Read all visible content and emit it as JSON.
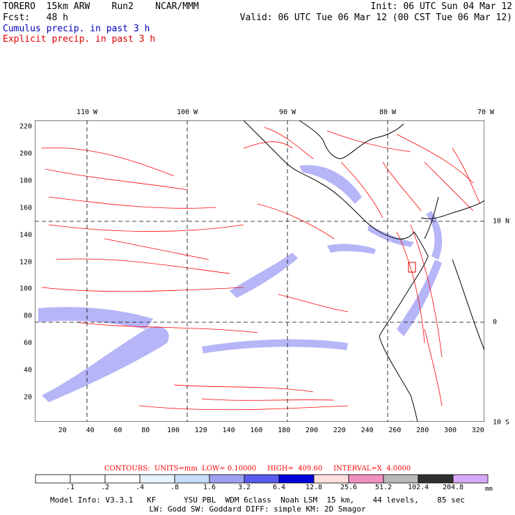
{
  "header": {
    "model": "TORERO  15km ARW    Run2    NCAR/MMM",
    "init": "Init: 06 UTC Sun 04 Mar 12",
    "fcst": "Fcst:   48 h",
    "valid": "Valid: 06 UTC Tue 06 Mar 12 (00 CST Tue 06 Mar 12)",
    "field1": "Cumulus precip. in past 3 h",
    "field2": "Explicit precip. in past 3 h"
  },
  "colors": {
    "cumulus": "#0000c0",
    "explicit": "#e00000",
    "contour": "#ff0000",
    "land": "#000000"
  },
  "lon_labels": [
    "110 W",
    "100 W",
    "90 W",
    "80 W",
    "70 W"
  ],
  "lat_labels": [
    "10 N",
    "0",
    "10 S"
  ],
  "x_ticks": [
    "20",
    "40",
    "60",
    "80",
    "100",
    "120",
    "140",
    "160",
    "180",
    "200",
    "220",
    "240",
    "260",
    "280",
    "300",
    "320"
  ],
  "y_ticks": [
    "220",
    "200",
    "180",
    "160",
    "140",
    "120",
    "100",
    "80",
    "60",
    "40",
    "20"
  ],
  "contour_info": "CONTOURS:  UNITS=mm  LOW= 0.10000     HIGH=  409.60     INTERVAL=X  4.0000",
  "colorbar": {
    "labels": [
      ".1",
      ".2",
      ".4",
      ".8",
      "1.6",
      "3.2",
      "6.4",
      "12.8",
      "25.6",
      "51.2",
      "102.4",
      "204.8"
    ],
    "colors": [
      "#ffffff",
      "#ffffff",
      "#ffffff",
      "#e8f4ff",
      "#c8dcfa",
      "#9aa2f0",
      "#5a5aee",
      "#0000d8",
      "#ffdede",
      "#f090c0",
      "#b8b8b8",
      "#303030",
      "#d8a8f8"
    ],
    "unit": "mm"
  },
  "footer": {
    "line1": "Model Info: V3.3.1   KF      YSU PBL  WDM 6class  Noah LSM  15 km,    44 levels,    85 sec",
    "line2": "LW: Godd SW: Goddard DIFF: simple KM: 2D Smagor"
  }
}
